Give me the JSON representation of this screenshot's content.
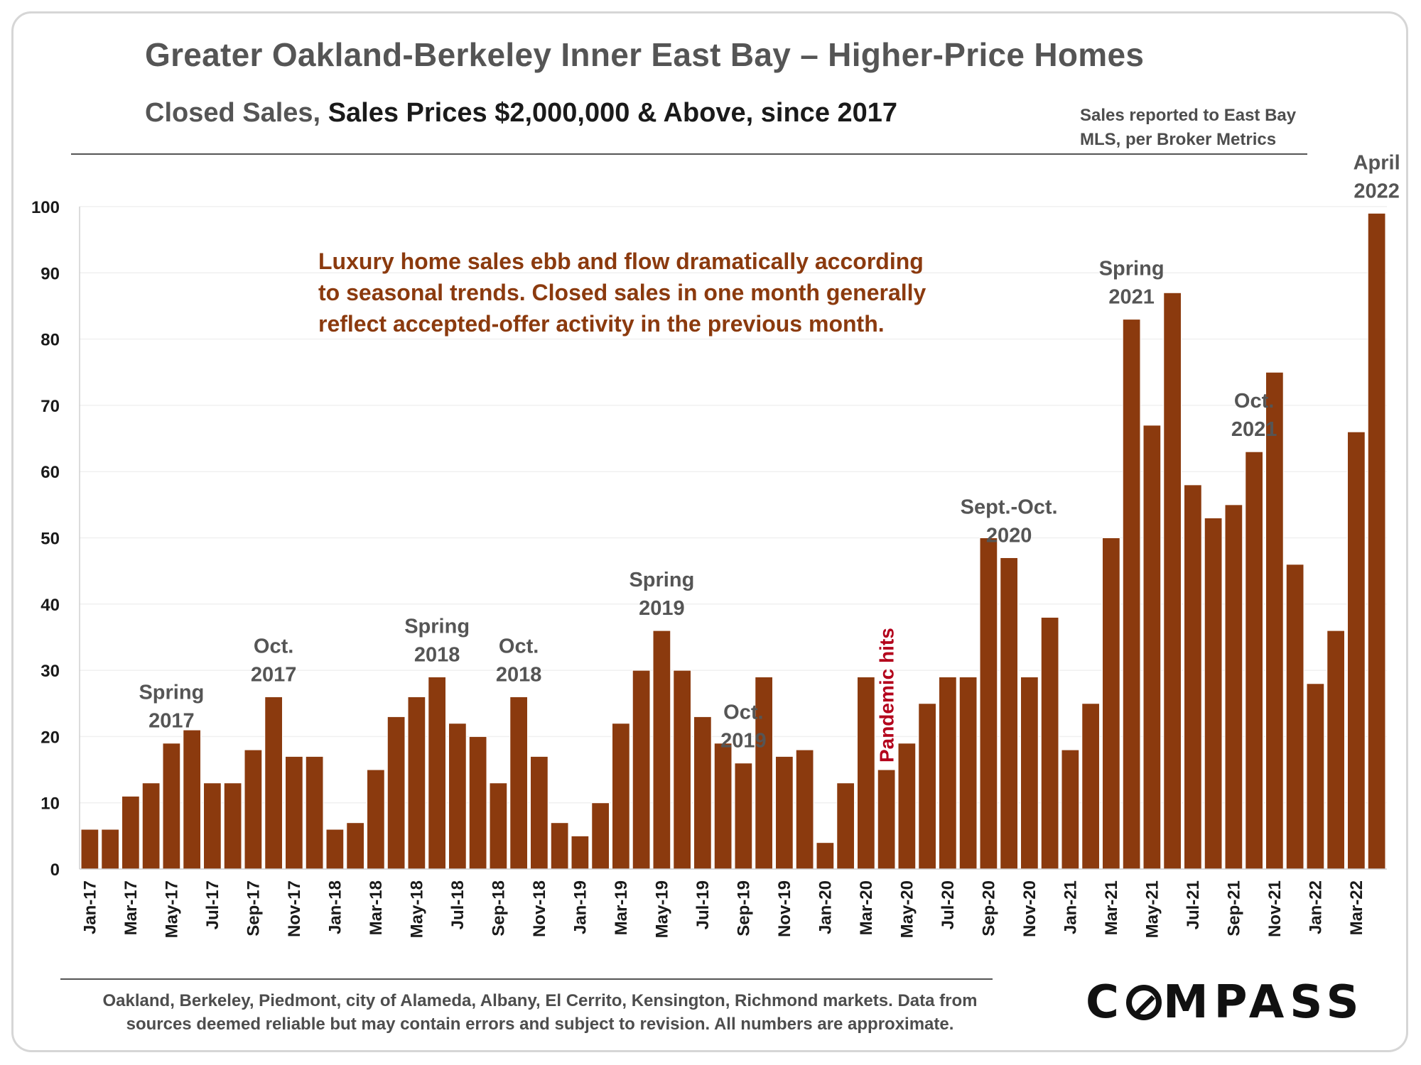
{
  "header": {
    "title": "Greater Oakland-Berkeley Inner East Bay – Higher-Price Homes",
    "subtitle_prefix": "Closed Sales,",
    "subtitle_main": "Sales Prices $2,000,000 & Above, since 2017",
    "source_note": "Sales reported to East Bay MLS, per Broker Metrics"
  },
  "footer": {
    "note": "Oakland, Berkeley, Piedmont, city of Alameda, Albany, El Cerrito, Kensington, Richmond markets. Data from sources deemed reliable but may contain errors and subject to revision. All numbers are approximate.",
    "logo": "COMPASS"
  },
  "colors": {
    "bar": "#8b3a0e",
    "text": "#555555",
    "accent_red": "#b3001b"
  },
  "chart_data": {
    "type": "bar",
    "title": "Greater Oakland-Berkeley Inner East Bay – Higher-Price Homes",
    "subtitle": "Closed Sales, Sales Prices $2,000,000 & Above, since 2017",
    "xlabel": "",
    "ylabel": "",
    "ylim": [
      0,
      100
    ],
    "yticks": [
      0,
      10,
      20,
      30,
      40,
      50,
      60,
      70,
      80,
      90,
      100
    ],
    "grid": true,
    "categories": [
      "Jan-17",
      "Feb-17",
      "Mar-17",
      "Apr-17",
      "May-17",
      "Jun-17",
      "Jul-17",
      "Aug-17",
      "Sep-17",
      "Oct-17",
      "Nov-17",
      "Dec-17",
      "Jan-18",
      "Feb-18",
      "Mar-18",
      "Apr-18",
      "May-18",
      "Jun-18",
      "Jul-18",
      "Aug-18",
      "Sep-18",
      "Oct-18",
      "Nov-18",
      "Dec-18",
      "Jan-19",
      "Feb-19",
      "Mar-19",
      "Apr-19",
      "May-19",
      "Jun-19",
      "Jul-19",
      "Aug-19",
      "Sep-19",
      "Oct-19",
      "Nov-19",
      "Dec-19",
      "Jan-20",
      "Feb-20",
      "Mar-20",
      "Apr-20",
      "May-20",
      "Jun-20",
      "Jul-20",
      "Aug-20",
      "Sep-20",
      "Oct-20",
      "Nov-20",
      "Dec-20",
      "Jan-21",
      "Feb-21",
      "Mar-21",
      "Apr-21",
      "May-21",
      "Jun-21",
      "Jul-21",
      "Aug-21",
      "Sep-21",
      "Oct-21",
      "Nov-21",
      "Dec-21",
      "Jan-22",
      "Feb-22",
      "Mar-22",
      "Apr-22"
    ],
    "tick_labels": [
      "Jan-17",
      "Mar-17",
      "May-17",
      "Jul-17",
      "Sep-17",
      "Nov-17",
      "Jan-18",
      "Mar-18",
      "May-18",
      "Jul-18",
      "Sep-18",
      "Nov-18",
      "Jan-19",
      "Mar-19",
      "May-19",
      "Jul-19",
      "Sep-19",
      "Nov-19",
      "Jan-20",
      "Mar-20",
      "May-20",
      "Jul-20",
      "Sep-20",
      "Nov-20",
      "Jan-21",
      "Mar-21",
      "May-21",
      "Jul-21",
      "Sep-21",
      "Nov-21",
      "Jan-22",
      "Mar-22"
    ],
    "values": [
      6,
      6,
      11,
      13,
      19,
      21,
      13,
      13,
      18,
      26,
      17,
      17,
      6,
      7,
      15,
      23,
      26,
      29,
      22,
      20,
      13,
      26,
      17,
      7,
      5,
      10,
      22,
      30,
      36,
      30,
      23,
      19,
      16,
      29,
      17,
      18,
      4,
      13,
      29,
      15,
      19,
      25,
      29,
      29,
      50,
      47,
      29,
      38,
      18,
      25,
      50,
      83,
      67,
      87,
      58,
      53,
      55,
      63,
      75,
      46,
      28,
      36,
      66,
      99
    ],
    "annotations": [
      {
        "category": "May-17",
        "lines": [
          "Spring",
          "2017"
        ],
        "style": "label"
      },
      {
        "category": "Oct-17",
        "lines": [
          "Oct.",
          "2017"
        ],
        "style": "label"
      },
      {
        "category": "Jun-18",
        "lines": [
          "Spring",
          "2018"
        ],
        "style": "label"
      },
      {
        "category": "Oct-18",
        "lines": [
          "Oct.",
          "2018"
        ],
        "style": "label"
      },
      {
        "category": "May-19",
        "lines": [
          "Spring",
          "2019"
        ],
        "style": "label"
      },
      {
        "category": "Sep-19",
        "lines": [
          "Oct.",
          "2019"
        ],
        "style": "label"
      },
      {
        "category": "Oct-20",
        "lines": [
          "Sept.-Oct.",
          "2020"
        ],
        "style": "label"
      },
      {
        "category": "Apr-21",
        "lines": [
          "Spring",
          "2021"
        ],
        "style": "label"
      },
      {
        "category": "Oct-21",
        "lines": [
          "Oct.",
          "2021"
        ],
        "style": "label"
      },
      {
        "category": "Apr-22",
        "lines": [
          "April",
          "2022"
        ],
        "style": "label"
      },
      {
        "category": "Apr-20",
        "lines": [
          "Pandemic hits"
        ],
        "style": "vertical-red"
      }
    ],
    "callout": [
      "Luxury home sales ebb and flow dramatically according",
      "to seasonal trends. Closed sales in one month generally",
      "reflect accepted-offer activity in the previous month."
    ]
  }
}
